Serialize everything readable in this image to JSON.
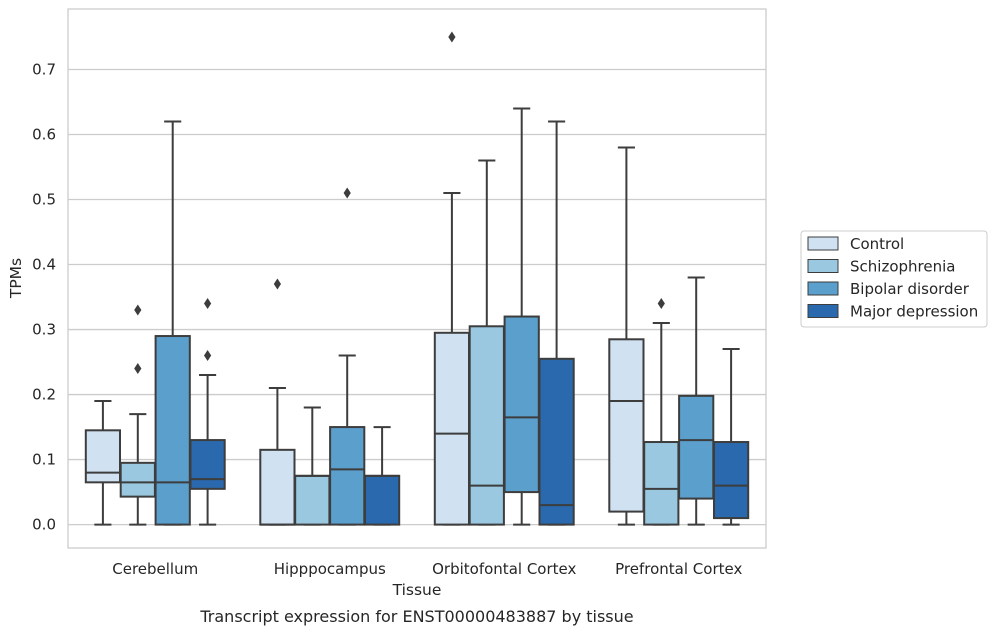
{
  "chart_data": {
    "type": "box",
    "xlabel": "Tissue",
    "ylabel": "TPMs",
    "caption": "Transcript expression for ENST00000483887 by tissue",
    "categories": [
      "Cerebellum",
      "Hipppocampus",
      "Orbitofontal Cortex",
      "Prefrontal Cortex"
    ],
    "ylim": [
      -0.036,
      0.793
    ],
    "yticks": [
      0.0,
      0.1,
      0.2,
      0.3,
      0.4,
      0.5,
      0.6,
      0.7
    ],
    "ytick_labels": [
      "0.0",
      "0.1",
      "0.2",
      "0.3",
      "0.4",
      "0.5",
      "0.6",
      "0.7"
    ],
    "grid": "horizontal",
    "legend_position": "right",
    "series": [
      {
        "name": "Control",
        "color": "#d0e1f2",
        "boxes": [
          {
            "whisker_low": 0.0,
            "q1": 0.065,
            "median": 0.08,
            "q3": 0.145,
            "whisker_high": 0.19,
            "outliers": []
          },
          {
            "whisker_low": 0.0,
            "q1": 0.0,
            "median": 0.0,
            "q3": 0.115,
            "whisker_high": 0.21,
            "outliers": [
              0.37
            ]
          },
          {
            "whisker_low": 0.0,
            "q1": 0.0,
            "median": 0.14,
            "q3": 0.295,
            "whisker_high": 0.51,
            "outliers": [
              0.75
            ]
          },
          {
            "whisker_low": 0.0,
            "q1": 0.02,
            "median": 0.19,
            "q3": 0.285,
            "whisker_high": 0.58,
            "outliers": []
          }
        ]
      },
      {
        "name": "Schizophrenia",
        "color": "#9ac8e0",
        "boxes": [
          {
            "whisker_low": 0.0,
            "q1": 0.043,
            "median": 0.065,
            "q3": 0.095,
            "whisker_high": 0.17,
            "outliers": [
              0.24,
              0.33
            ]
          },
          {
            "whisker_low": 0.0,
            "q1": 0.0,
            "median": 0.075,
            "q3": 0.075,
            "whisker_high": 0.18,
            "outliers": []
          },
          {
            "whisker_low": 0.0,
            "q1": 0.0,
            "median": 0.06,
            "q3": 0.305,
            "whisker_high": 0.56,
            "outliers": []
          },
          {
            "whisker_low": 0.0,
            "q1": 0.0,
            "median": 0.055,
            "q3": 0.127,
            "whisker_high": 0.31,
            "outliers": [
              0.34
            ]
          }
        ]
      },
      {
        "name": "Bipolar disorder",
        "color": "#5b9fcd",
        "boxes": [
          {
            "whisker_low": 0.0,
            "q1": 0.0,
            "median": 0.065,
            "q3": 0.29,
            "whisker_high": 0.62,
            "outliers": []
          },
          {
            "whisker_low": 0.0,
            "q1": 0.0,
            "median": 0.085,
            "q3": 0.15,
            "whisker_high": 0.26,
            "outliers": [
              0.51
            ]
          },
          {
            "whisker_low": 0.0,
            "q1": 0.05,
            "median": 0.165,
            "q3": 0.32,
            "whisker_high": 0.64,
            "outliers": []
          },
          {
            "whisker_low": 0.0,
            "q1": 0.04,
            "median": 0.13,
            "q3": 0.198,
            "whisker_high": 0.38,
            "outliers": []
          }
        ]
      },
      {
        "name": "Major depression",
        "color": "#2a69ad",
        "boxes": [
          {
            "whisker_low": 0.0,
            "q1": 0.055,
            "median": 0.07,
            "q3": 0.13,
            "whisker_high": 0.23,
            "outliers": [
              0.26,
              0.34
            ]
          },
          {
            "whisker_low": 0.0,
            "q1": 0.0,
            "median": 0.075,
            "q3": 0.075,
            "whisker_high": 0.15,
            "outliers": []
          },
          {
            "whisker_low": 0.0,
            "q1": 0.0,
            "median": 0.03,
            "q3": 0.255,
            "whisker_high": 0.62,
            "outliers": []
          },
          {
            "whisker_low": 0.0,
            "q1": 0.01,
            "median": 0.06,
            "q3": 0.127,
            "whisker_high": 0.27,
            "outliers": []
          }
        ]
      }
    ]
  }
}
